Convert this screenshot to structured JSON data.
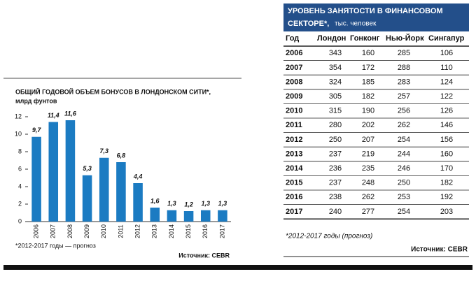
{
  "chart_data": {
    "type": "bar",
    "title": "ОБЩИЙ ГОДОВОЙ ОБЪЕМ БОНУСОВ В ЛОНДОНСКОМ СИТИ*,",
    "subtitle": "млрд фунтов",
    "categories": [
      "2006",
      "2007",
      "2008",
      "2009",
      "2010",
      "2011",
      "2012",
      "2013",
      "2014",
      "2015",
      "2016",
      "2017"
    ],
    "values": [
      9.7,
      11.4,
      11.6,
      5.3,
      7.3,
      6.8,
      4.4,
      1.6,
      1.3,
      1.2,
      1.3,
      1.3
    ],
    "value_labels": [
      "9,7",
      "11,4",
      "11,6",
      "5,3",
      "7,3",
      "6,8",
      "4,4",
      "1,6",
      "1,3",
      "1,2",
      "1,3",
      "1,3"
    ],
    "color": "#1b7bc2",
    "ylim": [
      0,
      12
    ],
    "yticks": [
      0,
      2,
      4,
      6,
      8,
      10,
      12
    ],
    "grid": false,
    "note": "*2012-2017 годы — прогноз",
    "source": "Источник: CEBR"
  },
  "table": {
    "title": "УРОВЕНЬ ЗАНЯТОСТИ В ФИНАНСОВОМ",
    "title2": "СЕКТОРЕ*,",
    "unit": "тыс. человек",
    "header": [
      "Год",
      "Лондон",
      "Гонконг",
      "Нью-Йорк",
      "Сингапур"
    ],
    "rows": [
      [
        2006,
        343,
        160,
        285,
        106
      ],
      [
        2007,
        354,
        172,
        288,
        110
      ],
      [
        2008,
        324,
        185,
        283,
        124
      ],
      [
        2009,
        305,
        182,
        257,
        122
      ],
      [
        2010,
        315,
        190,
        256,
        126
      ],
      [
        2011,
        280,
        202,
        262,
        146
      ],
      [
        2012,
        250,
        207,
        254,
        156
      ],
      [
        2013,
        237,
        219,
        244,
        160
      ],
      [
        2014,
        236,
        235,
        246,
        170
      ],
      [
        2015,
        237,
        248,
        250,
        182
      ],
      [
        2016,
        238,
        262,
        253,
        192
      ],
      [
        2017,
        240,
        277,
        254,
        203
      ]
    ],
    "note": "*2012-2017 годы (прогноз)",
    "source": "Источник: CEBR"
  }
}
